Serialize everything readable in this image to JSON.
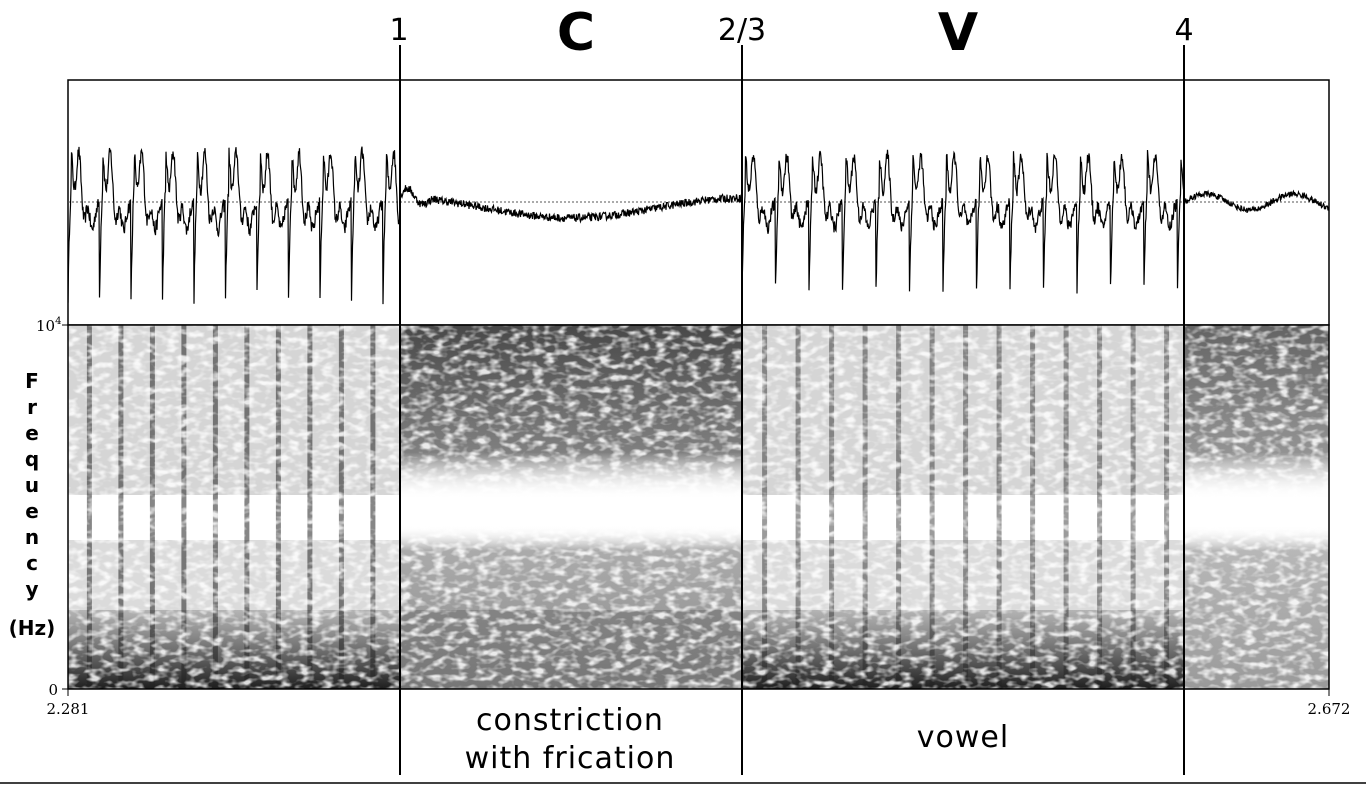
{
  "boundaries": [
    "1",
    "2/3",
    "4"
  ],
  "segments": [
    "C",
    "V"
  ],
  "y_axis": {
    "letters": [
      "F",
      "r",
      "e",
      "q",
      "u",
      "e",
      "n",
      "c",
      "y"
    ],
    "unit": "(Hz)",
    "top_tick_base": "10",
    "top_tick_exp": "4",
    "bottom_tick": "0"
  },
  "time_axis": {
    "start": "2.281",
    "end": "2.672"
  },
  "descriptions": {
    "constriction_line1": "constriction",
    "constriction_line2": "with frication",
    "vowel": "vowel"
  },
  "colors": {
    "ink": "#000000",
    "background": "#ffffff",
    "zero_line": "#555555"
  }
}
